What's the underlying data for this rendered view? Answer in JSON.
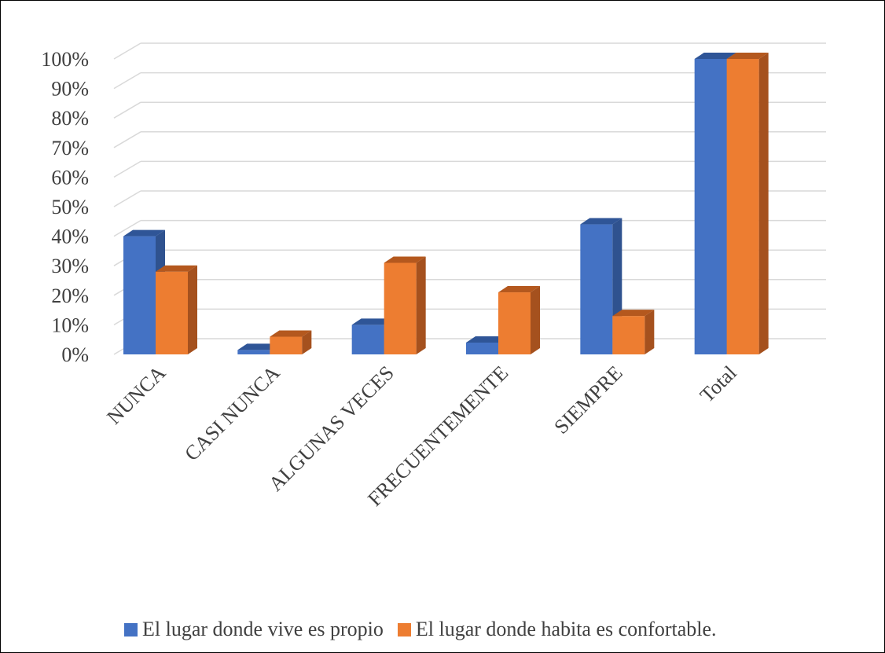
{
  "chart_data": {
    "type": "bar",
    "style": "3d-clustered-column",
    "categories": [
      "NUNCA",
      "CASI NUNCA",
      "ALGUNAS VECES",
      "FRECUENTEMENTE",
      "SIEMPRE",
      "Total"
    ],
    "series": [
      {
        "name": "El lugar donde vive es propio",
        "color": "#4472C4",
        "side_color": "#2F528F",
        "top_color": "#2F5597",
        "values": [
          40,
          1.5,
          10,
          4,
          44,
          100
        ]
      },
      {
        "name": "El lugar donde habita es confortable.",
        "color": "#ED7D31",
        "side_color": "#A5511E",
        "top_color": "#B4581E",
        "values": [
          28,
          6,
          31,
          21,
          13,
          100
        ]
      }
    ],
    "ylim": [
      0,
      100
    ],
    "yticks": [
      "0%",
      "10%",
      "20%",
      "30%",
      "40%",
      "50%",
      "60%",
      "70%",
      "80%",
      "90%",
      "100%"
    ],
    "grid": true,
    "legend_position": "bottom"
  }
}
